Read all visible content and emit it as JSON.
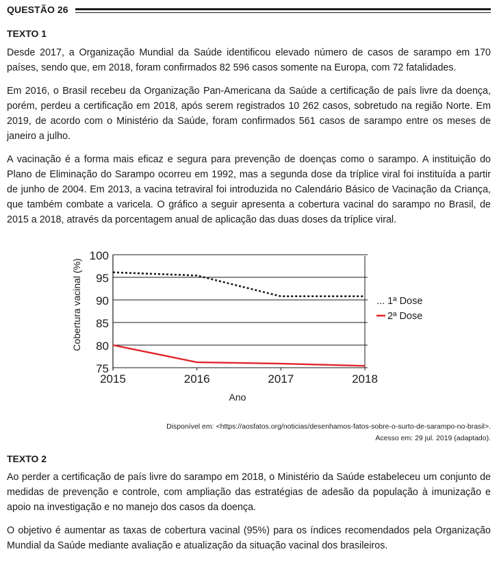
{
  "question": {
    "label": "QUESTÃO 26"
  },
  "texto1": {
    "heading": "TEXTO 1",
    "paragraphs": [
      "Desde 2017, a Organização Mundial da Saúde identificou elevado número de casos de sarampo em 170 países, sendo que, em 2018, foram confirmados 82 596 casos somente na Europa, com 72 fatalidades.",
      "Em 2016, o Brasil recebeu da Organização Pan-Americana da Saúde a certificação de país livre da doença, porém, perdeu a certificação em 2018, após serem registrados 10 262 casos, sobretudo na região Norte. Em 2019, de acordo com o Ministério da Saúde, foram confirmados 561 casos de sarampo entre os meses de janeiro a julho.",
      "A vacinação é a forma mais eficaz e segura para prevenção de doenças como o sarampo. A instituição do Plano de Eliminação do Sarampo ocorreu em 1992, mas a segunda dose da tríplice viral foi instituída a partir de junho de 2004. Em 2013, a vacina tetraviral foi introduzida no Calendário Básico de Vacinação da Criança, que também combate a varicela. O gráfico a seguir apresenta a cobertura vacinal do sarampo no Brasil, de 2015 a 2018, através da porcentagem anual de aplicação das duas doses da tríplice viral."
    ]
  },
  "chart_data": {
    "type": "line",
    "x": [
      2015,
      2016,
      2017,
      2018
    ],
    "xlabel": "Ano",
    "ylabel": "Cobertura vacinal (%)",
    "ylim": [
      75,
      100
    ],
    "yticks": [
      75,
      80,
      85,
      90,
      95,
      100
    ],
    "xticks": [
      "2015",
      "2016",
      "2017",
      "2018"
    ],
    "grid": true,
    "legend_position": "right",
    "series": [
      {
        "name": "1ª Dose",
        "legend_label": "... 1ª Dose",
        "style": "dotted",
        "color": "#1a1a1a",
        "values": [
          96.1,
          95.4,
          90.8,
          90.8
        ]
      },
      {
        "name": "2ª Dose",
        "legend_label": "2ª Dose",
        "style": "solid",
        "color": "#e3242b",
        "values": [
          80.0,
          76.2,
          75.9,
          75.4
        ]
      }
    ]
  },
  "source": {
    "line1": "Disponível em: <https://aosfatos.org/noticias/desenhamos-fatos-sobre-o-surto-de-sarampo-no-brasil>.",
    "line2": "Acesso em: 29 jul. 2019 (adaptado)."
  },
  "texto2": {
    "heading": "TEXTO 2",
    "paragraphs": [
      "Ao perder a certificação de país livre do sarampo em 2018, o Ministério da Saúde estabeleceu um conjunto de medidas de prevenção e controle, com ampliação das estratégias de adesão da população à imunização e apoio na investigação e no manejo dos casos da doença.",
      "O objetivo é aumentar as taxas de cobertura vacinal (95%) para os índices recomendados pela Organização Mundial da Saúde mediante avaliação e atualização da situação vacinal dos brasileiros."
    ]
  }
}
